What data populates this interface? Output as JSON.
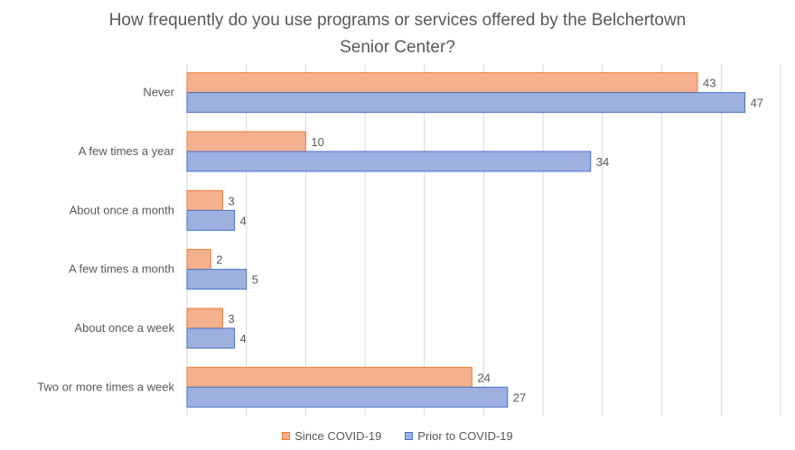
{
  "chart_data": {
    "type": "bar",
    "orientation": "horizontal",
    "title_lines": [
      "How frequently do you use programs or services offered by the Belchertown",
      "Senior Center?"
    ],
    "categories": [
      "Never",
      "A few times a year",
      "About once a month",
      "A few times a month",
      "About once a week",
      "Two or more times a week"
    ],
    "series": [
      {
        "name": "Since COVID-19",
        "values": [
          43,
          10,
          3,
          2,
          3,
          24
        ],
        "color": "#f4b08f",
        "border": "#ed7d31"
      },
      {
        "name": "Prior to COVID-19",
        "values": [
          47,
          34,
          4,
          5,
          4,
          27
        ],
        "color": "#9fafe0",
        "border": "#4472c4"
      }
    ],
    "xlim": [
      0,
      50
    ],
    "grid": true,
    "legend_position": "bottom",
    "xlabel": "",
    "ylabel": ""
  }
}
